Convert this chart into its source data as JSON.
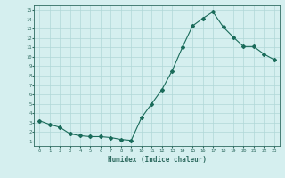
{
  "xlabel": "Humidex (Indice chaleur)",
  "ylabel": "",
  "x_values": [
    0,
    1,
    2,
    3,
    4,
    5,
    6,
    7,
    8,
    9,
    10,
    11,
    12,
    13,
    14,
    15,
    16,
    17,
    18,
    19,
    20,
    21,
    22,
    23
  ],
  "y_values": [
    3.2,
    2.8,
    2.5,
    1.8,
    1.6,
    1.5,
    1.5,
    1.4,
    1.2,
    1.1,
    3.5,
    5.0,
    6.5,
    8.5,
    11.0,
    13.3,
    14.1,
    14.8,
    13.2,
    12.1,
    11.1,
    11.1,
    10.3,
    9.7
  ],
  "line_color": "#1a6b5a",
  "marker": "D",
  "marker_size": 2,
  "bg_color": "#d5efef",
  "grid_color": "#b0d8d8",
  "axis_color": "#2e6b60",
  "xlim": [
    -0.5,
    23.5
  ],
  "ylim": [
    0.5,
    15.5
  ],
  "yticks": [
    1,
    2,
    3,
    4,
    5,
    6,
    7,
    8,
    9,
    10,
    11,
    12,
    13,
    14,
    15
  ],
  "xticks": [
    0,
    1,
    2,
    3,
    4,
    5,
    6,
    7,
    8,
    9,
    10,
    11,
    12,
    13,
    14,
    15,
    16,
    17,
    18,
    19,
    20,
    21,
    22,
    23
  ]
}
